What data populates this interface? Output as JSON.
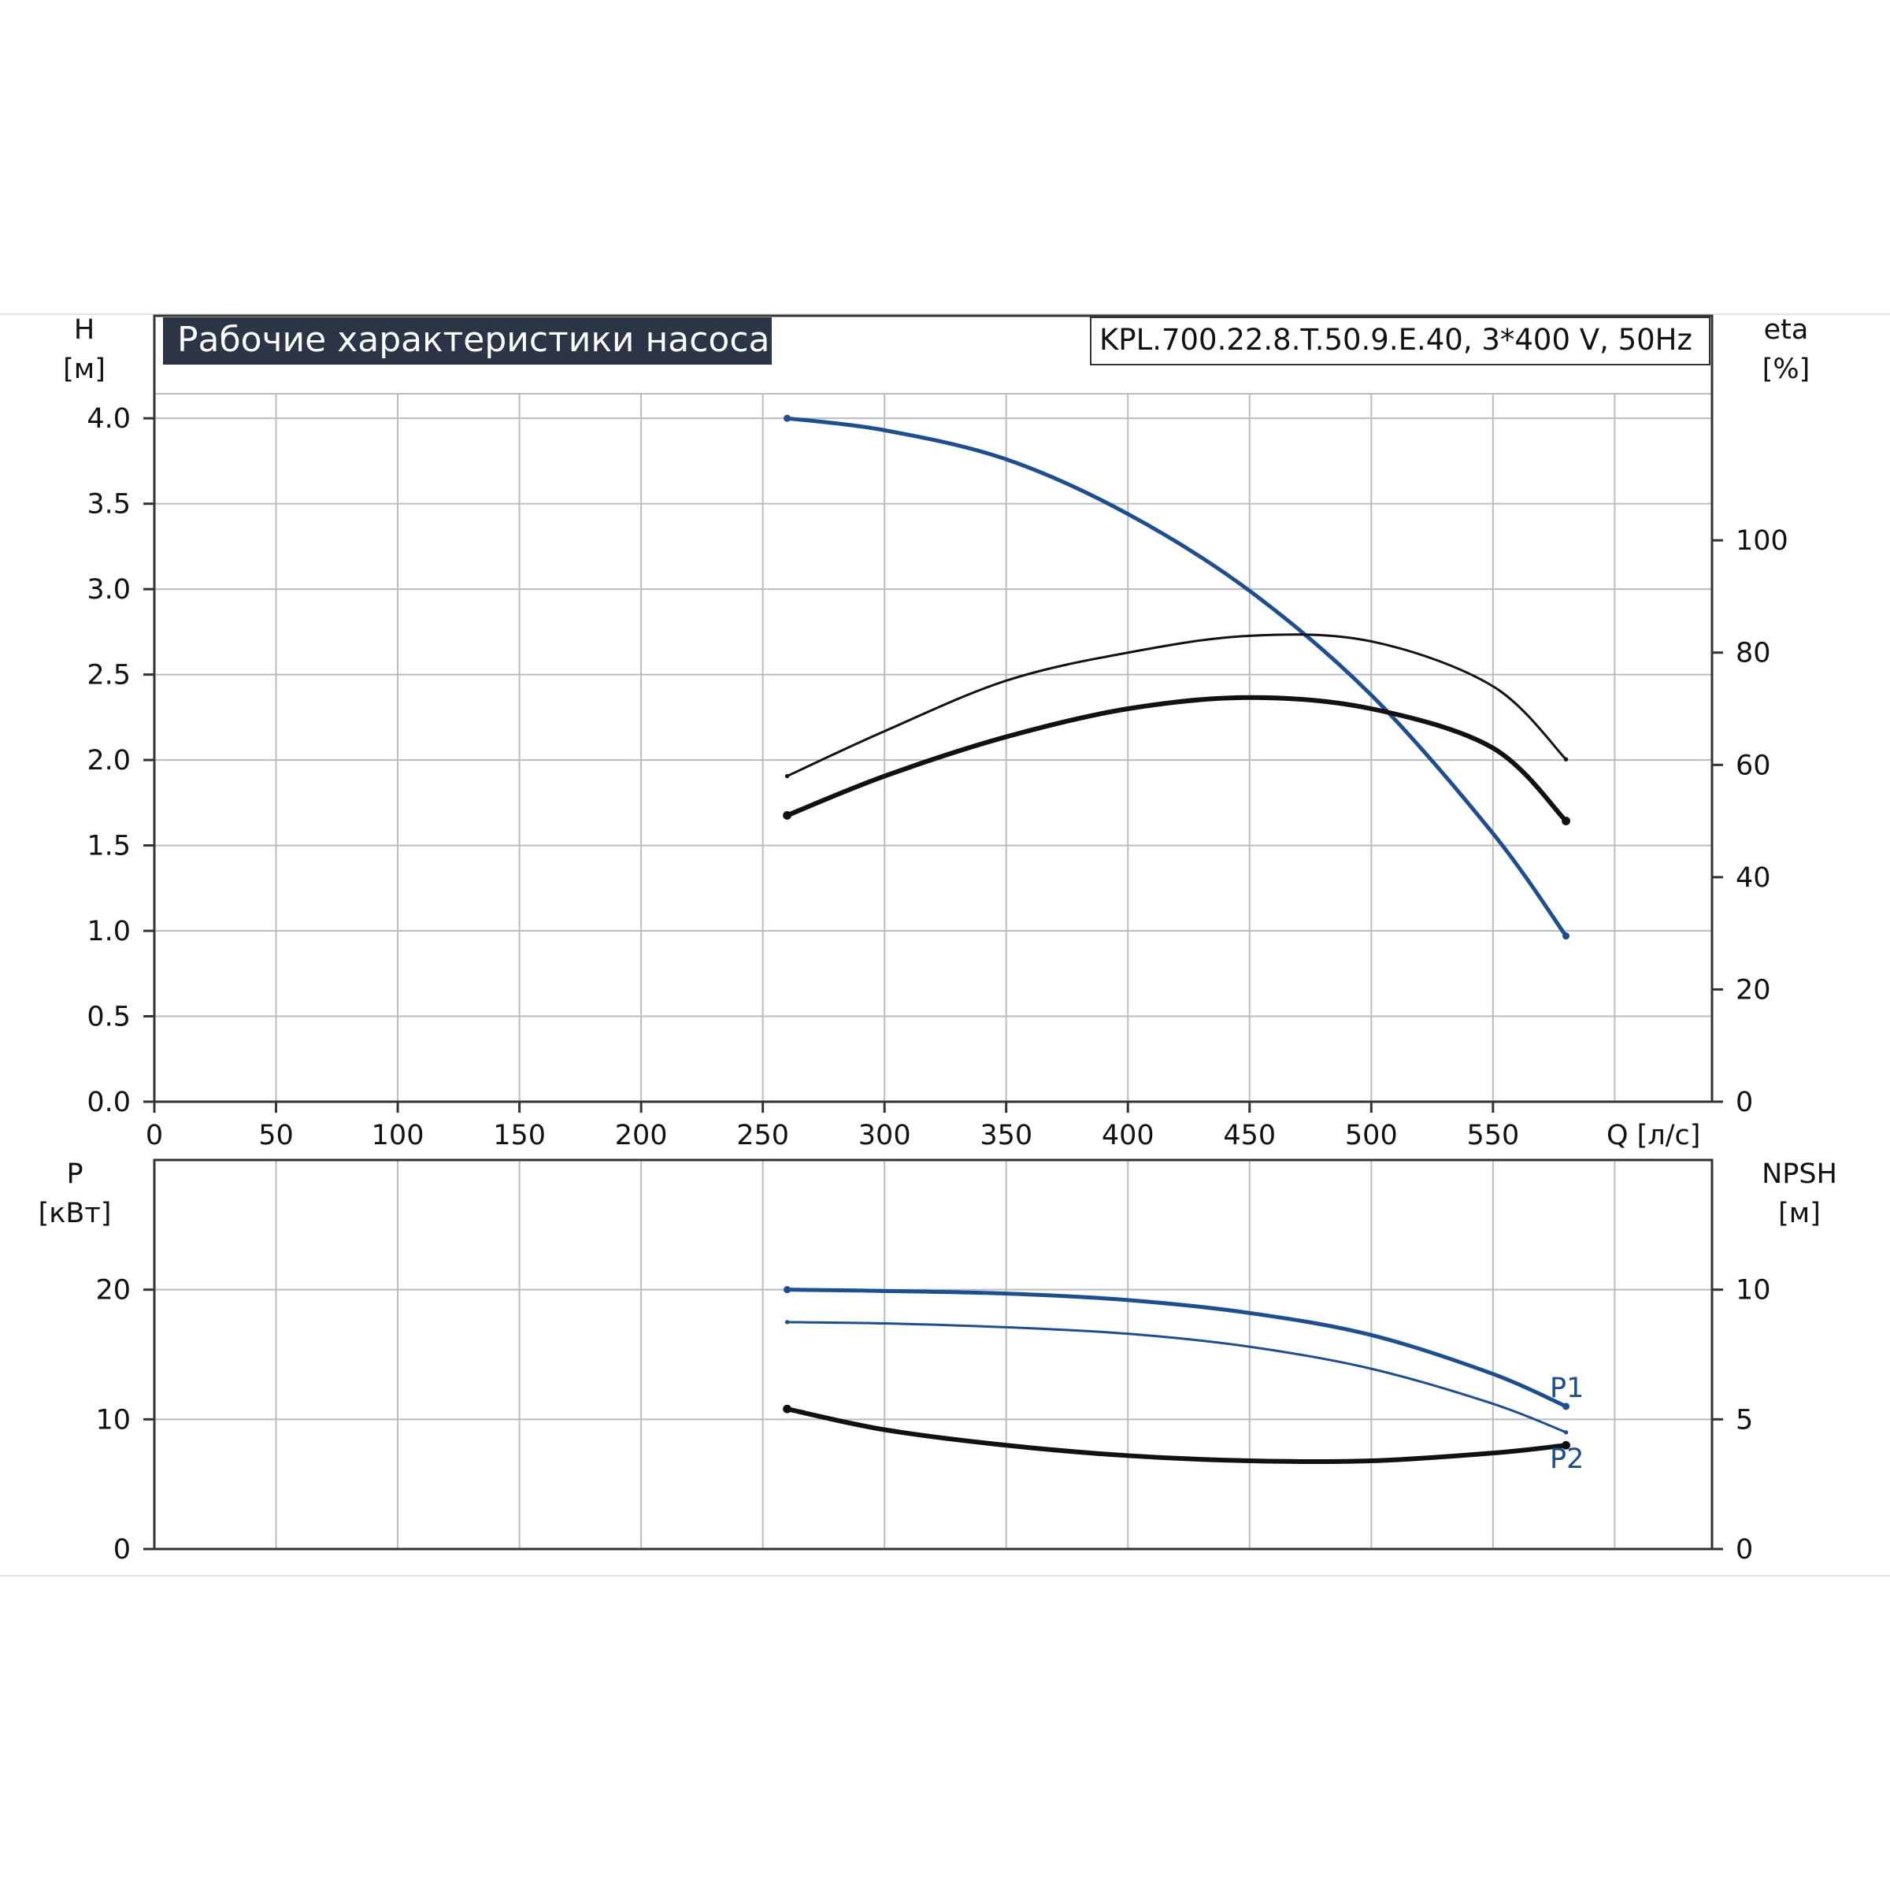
{
  "title": "Рабочие характеристики насоса",
  "model": "KPL.700.22.8.T.50.9.E.40, 3*400 V, 50Hz",
  "colors": {
    "blue": "#1f4e8c",
    "black": "#111111",
    "title_bg": "#2b3545",
    "grid": "#b9bcc2"
  },
  "chart_data": [
    {
      "type": "line",
      "name": "head-efficiency",
      "x_label": "Q [л/с]",
      "x_ticks": [
        "0",
        "50",
        "100",
        "150",
        "200",
        "250",
        "300",
        "350",
        "400",
        "450",
        "500",
        "550"
      ],
      "xlim": [
        0,
        640
      ],
      "y_left_label": [
        "H",
        "[м]"
      ],
      "y_left_ticks": [
        "0.0",
        "0.5",
        "1.0",
        "1.5",
        "2.0",
        "2.5",
        "3.0",
        "3.5",
        "4.0"
      ],
      "y_left_lim": [
        0,
        4.6
      ],
      "y_right_label": [
        "eta",
        "[%]"
      ],
      "y_right_ticks": [
        "0",
        "20",
        "40",
        "60",
        "80",
        "100"
      ],
      "y_right_lim": [
        0,
        140
      ],
      "series": [
        {
          "axis": "left",
          "color": "#1f4e8c",
          "width": 5,
          "x": [
            260,
            300,
            350,
            400,
            450,
            500,
            550,
            580
          ],
          "y": [
            4.0,
            3.93,
            3.76,
            3.44,
            2.99,
            2.38,
            1.57,
            0.97
          ]
        },
        {
          "axis": "right",
          "color": "#111111",
          "width": 3,
          "x": [
            260,
            300,
            350,
            400,
            450,
            500,
            550,
            580
          ],
          "y": [
            58,
            66,
            75,
            80,
            83,
            82,
            74,
            61
          ]
        },
        {
          "axis": "right",
          "color": "#111111",
          "width": 6,
          "x": [
            260,
            300,
            350,
            400,
            450,
            500,
            550,
            580
          ],
          "y": [
            51,
            58,
            65,
            70,
            72,
            70,
            63,
            50
          ]
        }
      ]
    },
    {
      "type": "line",
      "name": "power-npsh",
      "xlim": [
        0,
        640
      ],
      "y_left_label": [
        "P",
        "[кВт]"
      ],
      "y_left_ticks": [
        "0",
        "10",
        "20"
      ],
      "y_left_lim": [
        0,
        30
      ],
      "y_right_label": [
        "NPSH",
        "[м]"
      ],
      "y_right_ticks": [
        "0",
        "5",
        "10"
      ],
      "y_right_lim": [
        0,
        15
      ],
      "series": [
        {
          "name": "P1",
          "axis": "left",
          "color": "#1f4e8c",
          "width": 5,
          "x": [
            260,
            300,
            350,
            400,
            450,
            500,
            550,
            580
          ],
          "y": [
            20.0,
            19.9,
            19.7,
            19.2,
            18.2,
            16.5,
            13.5,
            11.0
          ]
        },
        {
          "name": "P2",
          "axis": "left",
          "color": "#1f4e8c",
          "width": 3,
          "x": [
            260,
            300,
            350,
            400,
            450,
            500,
            550,
            580
          ],
          "y": [
            17.5,
            17.4,
            17.1,
            16.6,
            15.6,
            13.9,
            11.2,
            9.0
          ]
        },
        {
          "axis": "right",
          "color": "#111111",
          "width": 6,
          "x": [
            260,
            300,
            350,
            400,
            450,
            500,
            550,
            580
          ],
          "y": [
            5.4,
            4.6,
            4.0,
            3.6,
            3.4,
            3.4,
            3.7,
            4.0
          ]
        }
      ],
      "curve_labels": [
        "P1",
        "P2"
      ]
    }
  ]
}
